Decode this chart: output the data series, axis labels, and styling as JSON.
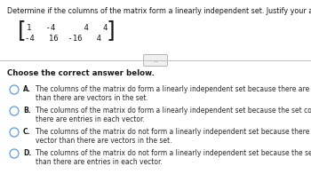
{
  "title": "Determine if the columns of the matrix form a linearly independent set. Justify your answer.",
  "matrix_row1": "  1  -4    4  4",
  "matrix_row2": " -4   16  -16  4",
  "divider_label": "...",
  "section_label": "Choose the correct answer below.",
  "options": [
    {
      "letter": "A.",
      "line1": "The columns of the matrix do form a linearly independent set because there are more entries in each vector",
      "line2": "than there are vectors in the set."
    },
    {
      "letter": "B.",
      "line1": "The columns of the matrix do form a linearly independent set because the set contains more vectors than",
      "line2": "there are entries in each vector."
    },
    {
      "letter": "C.",
      "line1": "The columns of the matrix do not form a linearly independent set because there are more entries in each",
      "line2": "vector than there are vectors in the set."
    },
    {
      "letter": "D.",
      "line1": "The columns of the matrix do not form a linearly independent set because the set contains more vectors",
      "line2": "than there are entries in each vector."
    }
  ],
  "bg_color": "#ffffff",
  "text_color": "#1a1a1a",
  "option_text_color": "#2a2a2a",
  "circle_color": "#5b9bd5",
  "highlight_color": "#fff2cc",
  "title_fontsize": 5.8,
  "matrix_fontsize": 6.5,
  "bracket_fontsize": 18,
  "option_fontsize": 5.5,
  "section_fontsize": 6.2
}
